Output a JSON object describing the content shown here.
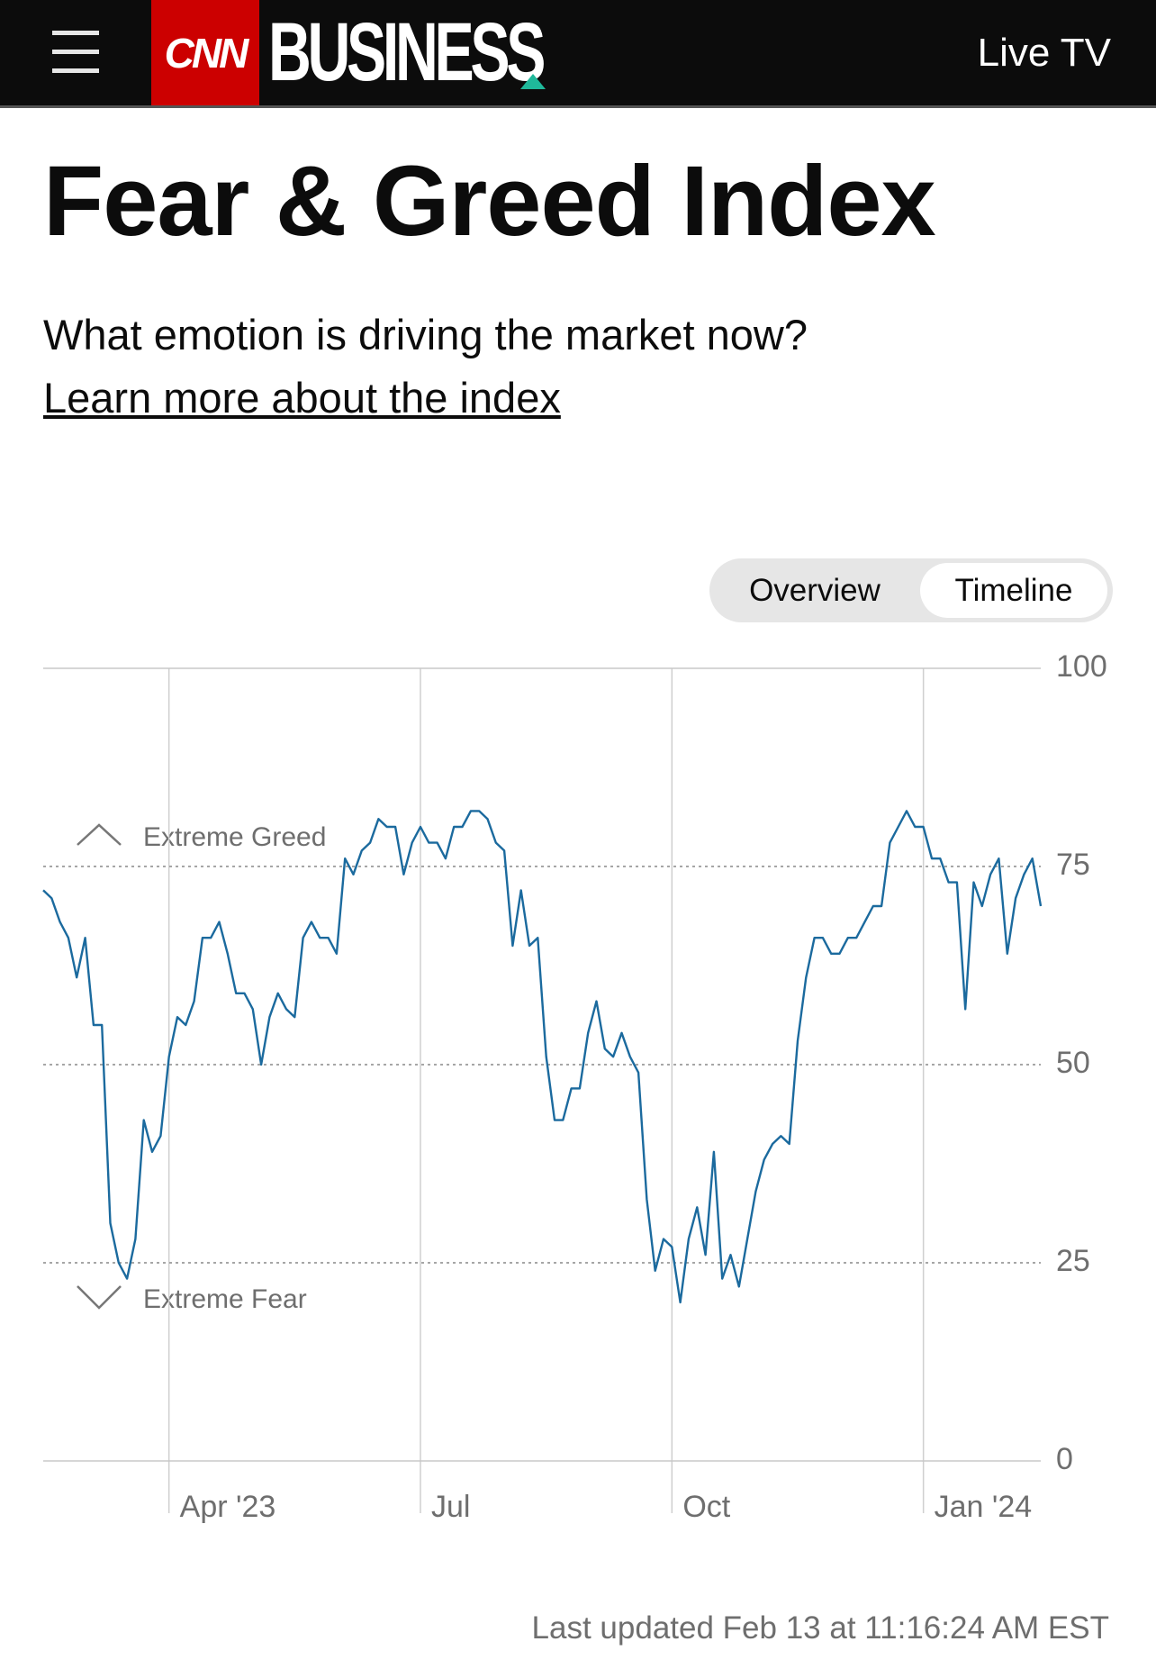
{
  "header": {
    "logo": "CNN",
    "section": "BUSINESS",
    "live": "Live TV"
  },
  "title": "Fear & Greed Index",
  "subtitle": "What emotion is driving the market now?",
  "link": "Learn more about the index",
  "toggle": [
    "Overview",
    "Timeline"
  ],
  "chart_data": {
    "type": "line",
    "annotations": [
      "Extreme Greed",
      "Extreme Fear"
    ],
    "categories": [
      null,
      null,
      null,
      null,
      null,
      null,
      null,
      null,
      null,
      null,
      null,
      null,
      null,
      null,
      null,
      "Apr '23",
      null,
      null,
      null,
      null,
      null,
      null,
      null,
      null,
      null,
      null,
      null,
      null,
      null,
      null,
      null,
      null,
      null,
      null,
      null,
      null,
      null,
      null,
      null,
      null,
      null,
      null,
      null,
      null,
      null,
      "Jul",
      null,
      null,
      null,
      null,
      null,
      null,
      null,
      null,
      null,
      null,
      null,
      null,
      null,
      null,
      null,
      null,
      null,
      null,
      null,
      null,
      null,
      null,
      null,
      null,
      null,
      null,
      null,
      null,
      null,
      "Oct",
      null,
      null,
      null,
      null,
      null,
      null,
      null,
      null,
      null,
      null,
      null,
      null,
      null,
      null,
      null,
      null,
      null,
      null,
      null,
      null,
      null,
      null,
      null,
      null,
      null,
      null,
      null,
      null,
      null,
      "Jan '24",
      null,
      null,
      null,
      null,
      null,
      null,
      null,
      null,
      null,
      null,
      null,
      null,
      null,
      null
    ],
    "values": [
      72,
      71,
      68,
      66,
      61,
      66,
      55,
      55,
      30,
      25,
      23,
      28,
      43,
      39,
      41,
      51,
      56,
      55,
      58,
      66,
      66,
      68,
      64,
      59,
      59,
      57,
      50,
      56,
      59,
      57,
      56,
      66,
      68,
      66,
      66,
      64,
      76,
      74,
      77,
      78,
      81,
      80,
      80,
      74,
      78,
      80,
      78,
      78,
      76,
      80,
      80,
      82,
      82,
      81,
      78,
      77,
      65,
      72,
      65,
      66,
      51,
      43,
      43,
      47,
      47,
      54,
      58,
      52,
      51,
      54,
      51,
      49,
      33,
      24,
      28,
      27,
      20,
      28,
      32,
      26,
      39,
      23,
      26,
      22,
      28,
      34,
      38,
      40,
      41,
      40,
      53,
      61,
      66,
      66,
      64,
      64,
      66,
      66,
      68,
      70,
      70,
      78,
      80,
      82,
      80,
      80,
      76,
      76,
      73,
      73,
      57,
      73,
      70,
      74,
      76,
      64,
      71,
      74,
      76,
      70
    ],
    "color": "#1b6a9e",
    "ylim": [
      0,
      100
    ],
    "yticks": [
      0,
      25,
      50,
      75,
      100
    ],
    "grid": true
  },
  "footer": "Last updated Feb 13 at 11:16:24 AM EST"
}
